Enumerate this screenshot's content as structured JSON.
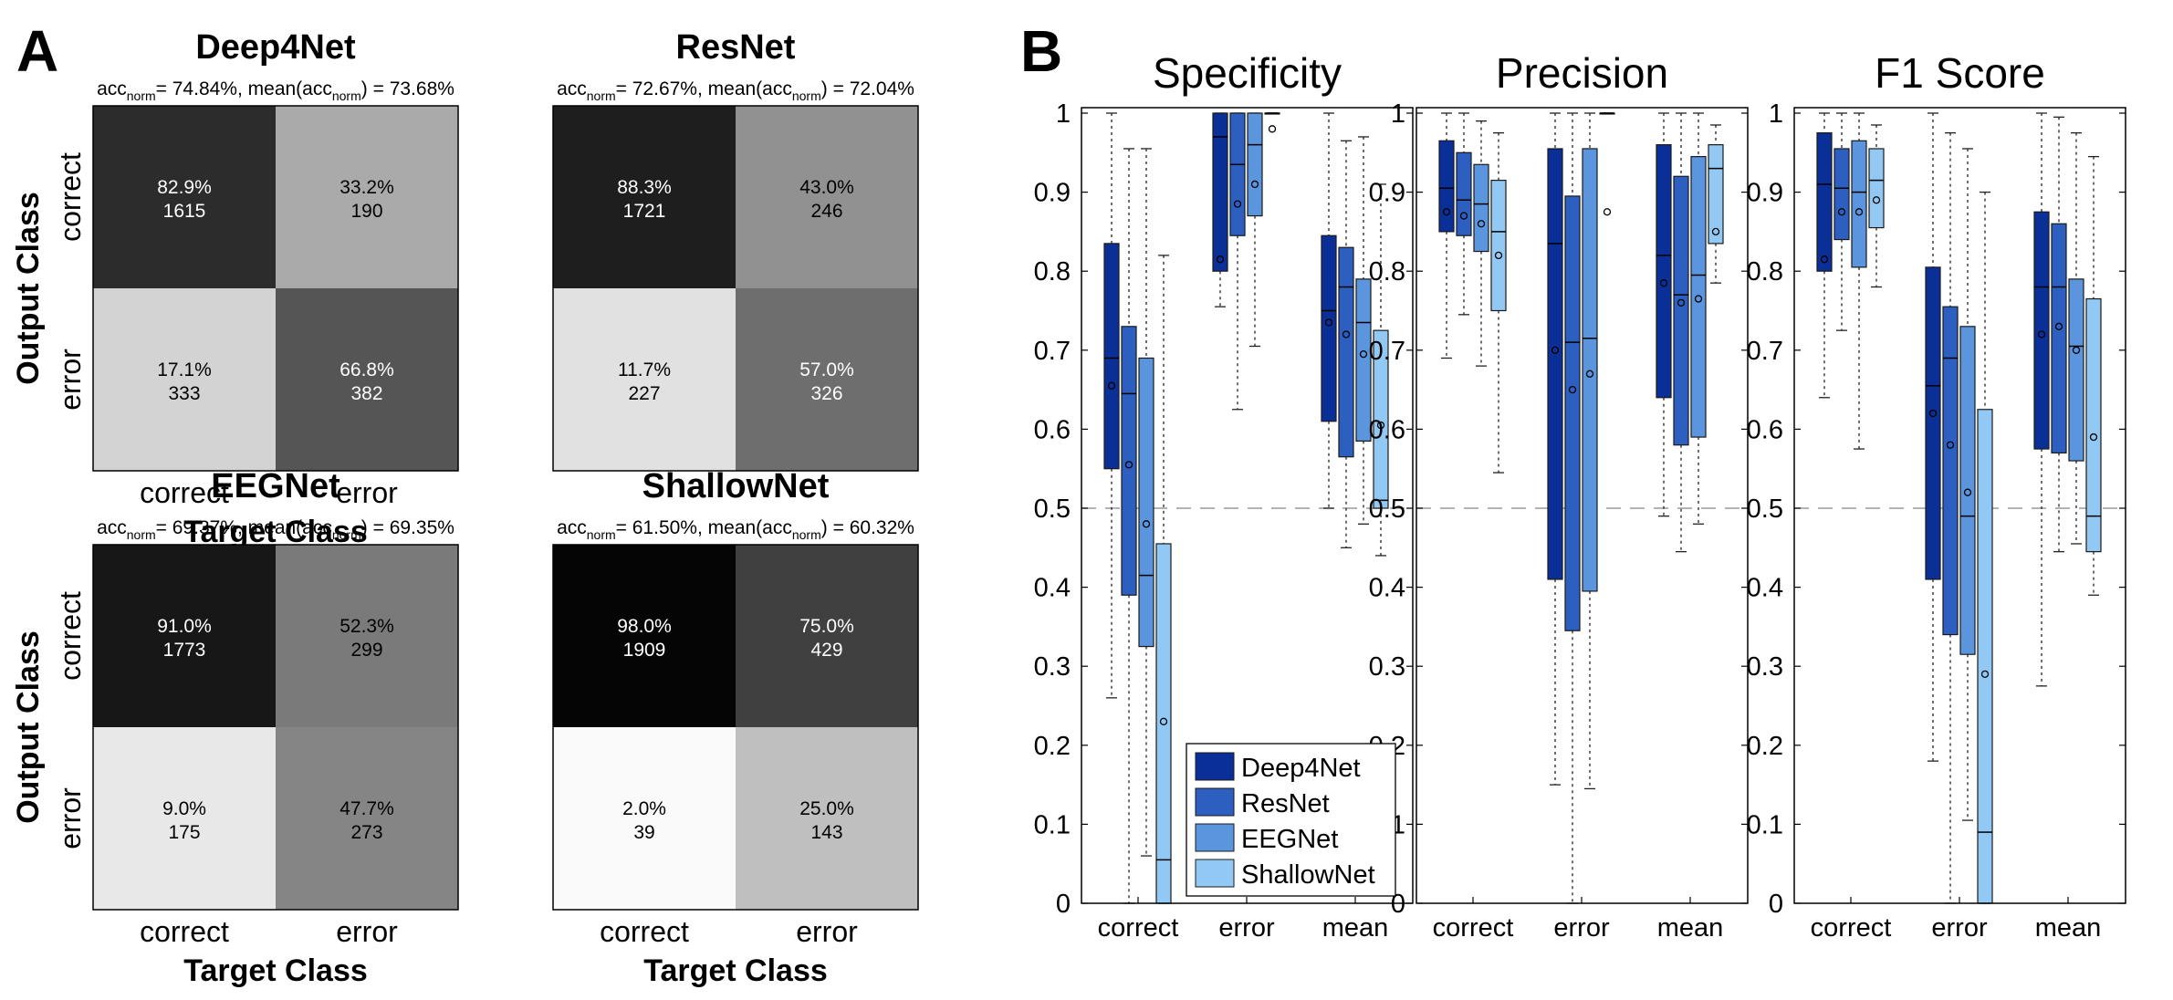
{
  "panel_labels": {
    "a": "A",
    "b": "B"
  },
  "legend_colors": [
    "#0a2f96",
    "#2c5fbf",
    "#5b95dd",
    "#92c9f4"
  ],
  "chart_data": [
    {
      "type": "heatmap",
      "title": "Deep4Net",
      "subtitle": {
        "pre": "acc",
        "sub1": "norm",
        "mid": "= 74.84%, mean(acc",
        "sub2": "norm",
        "post": ") = 73.68%"
      },
      "ylabel": "Output Class",
      "xlabel": "Target Class",
      "rows": [
        "correct",
        "error"
      ],
      "cols": [
        "correct",
        "error"
      ],
      "cells": [
        [
          {
            "pct": "82.9%",
            "count": "1615",
            "value": 0.829
          },
          {
            "pct": "33.2%",
            "count": "190",
            "value": 0.332
          }
        ],
        [
          {
            "pct": "17.1%",
            "count": "333",
            "value": 0.171
          },
          {
            "pct": "66.8%",
            "count": "382",
            "value": 0.668
          }
        ]
      ]
    },
    {
      "type": "heatmap",
      "title": "ResNet",
      "subtitle": {
        "pre": "acc",
        "sub1": "norm",
        "mid": "= 72.67%, mean(acc",
        "sub2": "norm",
        "post": ") = 72.04%"
      },
      "ylabel": "",
      "xlabel": "",
      "rows": [],
      "cols": [],
      "cells": [
        [
          {
            "pct": "88.3%",
            "count": "1721",
            "value": 0.883
          },
          {
            "pct": "43.0%",
            "count": "246",
            "value": 0.43
          }
        ],
        [
          {
            "pct": "11.7%",
            "count": "227",
            "value": 0.117
          },
          {
            "pct": "57.0%",
            "count": "326",
            "value": 0.57
          }
        ]
      ]
    },
    {
      "type": "heatmap",
      "title": "EEGNet",
      "subtitle": {
        "pre": "acc",
        "sub1": "norm",
        "mid": "= 69.37%, mean(acc",
        "sub2": "norm",
        "post": ") = 69.35%"
      },
      "ylabel": "Output Class",
      "xlabel": "Target Class",
      "rows": [
        "correct",
        "error"
      ],
      "cols": [
        "correct",
        "error"
      ],
      "cells": [
        [
          {
            "pct": "91.0%",
            "count": "1773",
            "value": 0.91
          },
          {
            "pct": "52.3%",
            "count": "299",
            "value": 0.523
          }
        ],
        [
          {
            "pct": "9.0%",
            "count": "175",
            "value": 0.09
          },
          {
            "pct": "47.7%",
            "count": "273",
            "value": 0.477
          }
        ]
      ]
    },
    {
      "type": "heatmap",
      "title": "ShallowNet",
      "subtitle": {
        "pre": "acc",
        "sub1": "norm",
        "mid": "= 61.50%, mean(acc",
        "sub2": "norm",
        "post": ") = 60.32%"
      },
      "ylabel": "",
      "xlabel": "Target Class",
      "rows": [],
      "cols": [
        "correct",
        "error"
      ],
      "cells": [
        [
          {
            "pct": "98.0%",
            "count": "1909",
            "value": 0.98
          },
          {
            "pct": "75.0%",
            "count": "429",
            "value": 0.75
          }
        ],
        [
          {
            "pct": "2.0%",
            "count": "39",
            "value": 0.02
          },
          {
            "pct": "25.0%",
            "count": "143",
            "value": 0.25
          }
        ]
      ]
    },
    {
      "type": "box",
      "title": "Specificity",
      "categories": [
        "correct",
        "error",
        "mean"
      ],
      "ylim": [
        0,
        1
      ],
      "yticks": [
        "0",
        "0.1",
        "0.2",
        "0.3",
        "0.4",
        "0.5",
        "0.6",
        "0.7",
        "0.8",
        "0.9",
        "1"
      ],
      "reference_line": 0.5,
      "legend": [
        "Deep4Net",
        "ResNet",
        "EEGNet",
        "ShallowNet"
      ],
      "groups": [
        {
          "category": "correct",
          "boxes": [
            {
              "series": "Deep4Net",
              "min": 0.26,
              "q1": 0.55,
              "median": 0.69,
              "q3": 0.835,
              "max": 1.0,
              "mean": 0.655
            },
            {
              "series": "ResNet",
              "min": 0.0,
              "q1": 0.39,
              "median": 0.645,
              "q3": 0.73,
              "max": 0.955,
              "mean": 0.555
            },
            {
              "series": "EEGNet",
              "min": 0.06,
              "q1": 0.325,
              "median": 0.415,
              "q3": 0.69,
              "max": 0.955,
              "mean": 0.48
            },
            {
              "series": "ShallowNet",
              "min": 0.0,
              "q1": 0.0,
              "median": 0.055,
              "q3": 0.455,
              "max": 0.82,
              "mean": 0.23
            }
          ]
        },
        {
          "category": "error",
          "boxes": [
            {
              "series": "Deep4Net",
              "min": 0.755,
              "q1": 0.8,
              "median": 0.97,
              "q3": 1.0,
              "max": 1.0,
              "mean": 0.815
            },
            {
              "series": "ResNet",
              "min": 0.625,
              "q1": 0.845,
              "median": 0.935,
              "q3": 1.0,
              "max": 1.0,
              "mean": 0.885
            },
            {
              "series": "EEGNet",
              "min": 0.705,
              "q1": 0.87,
              "median": 0.96,
              "q3": 1.0,
              "max": 1.0,
              "mean": 0.91
            },
            {
              "series": "ShallowNet",
              "min": 1.0,
              "q1": 1.0,
              "median": 1.0,
              "q3": 1.0,
              "max": 1.0,
              "mean": 0.98
            }
          ]
        },
        {
          "category": "mean",
          "boxes": [
            {
              "series": "Deep4Net",
              "min": 0.5,
              "q1": 0.61,
              "median": 0.75,
              "q3": 0.845,
              "max": 1.0,
              "mean": 0.735
            },
            {
              "series": "ResNet",
              "min": 0.45,
              "q1": 0.565,
              "median": 0.78,
              "q3": 0.83,
              "max": 0.965,
              "mean": 0.72
            },
            {
              "series": "EEGNet",
              "min": 0.48,
              "q1": 0.585,
              "median": 0.735,
              "q3": 0.79,
              "max": 0.97,
              "mean": 0.695
            },
            {
              "series": "ShallowNet",
              "min": 0.44,
              "q1": 0.5,
              "median": 0.51,
              "q3": 0.725,
              "max": 0.91,
              "mean": 0.605
            }
          ]
        }
      ]
    },
    {
      "type": "box",
      "title": "Precision",
      "categories": [
        "correct",
        "error",
        "mean"
      ],
      "ylim": [
        0,
        1
      ],
      "yticks": [
        "0",
        "0.1",
        "0.2",
        "0.3",
        "0.4",
        "0.5",
        "0.6",
        "0.7",
        "0.8",
        "0.9",
        "1"
      ],
      "reference_line": 0.5,
      "groups": [
        {
          "category": "correct",
          "boxes": [
            {
              "series": "Deep4Net",
              "min": 0.69,
              "q1": 0.85,
              "median": 0.905,
              "q3": 0.965,
              "max": 1.0,
              "mean": 0.875
            },
            {
              "series": "ResNet",
              "min": 0.745,
              "q1": 0.845,
              "median": 0.89,
              "q3": 0.95,
              "max": 1.0,
              "mean": 0.87
            },
            {
              "series": "EEGNet",
              "min": 0.68,
              "q1": 0.825,
              "median": 0.885,
              "q3": 0.935,
              "max": 0.99,
              "mean": 0.86
            },
            {
              "series": "ShallowNet",
              "min": 0.545,
              "q1": 0.75,
              "median": 0.85,
              "q3": 0.915,
              "max": 0.975,
              "mean": 0.82
            }
          ]
        },
        {
          "category": "error",
          "boxes": [
            {
              "series": "Deep4Net",
              "min": 0.15,
              "q1": 0.41,
              "median": 0.835,
              "q3": 0.955,
              "max": 1.0,
              "mean": 0.7
            },
            {
              "series": "ResNet",
              "min": 0.0,
              "q1": 0.345,
              "median": 0.71,
              "q3": 0.895,
              "max": 1.0,
              "mean": 0.65
            },
            {
              "series": "EEGNet",
              "min": 0.145,
              "q1": 0.395,
              "median": 0.715,
              "q3": 0.955,
              "max": 1.0,
              "mean": 0.67
            },
            {
              "series": "ShallowNet",
              "min": 1.0,
              "q1": 1.0,
              "median": 1.0,
              "q3": 1.0,
              "max": 1.0,
              "mean": 0.875
            }
          ]
        },
        {
          "category": "mean",
          "boxes": [
            {
              "series": "Deep4Net",
              "min": 0.49,
              "q1": 0.64,
              "median": 0.82,
              "q3": 0.96,
              "max": 1.0,
              "mean": 0.785
            },
            {
              "series": "ResNet",
              "min": 0.445,
              "q1": 0.58,
              "median": 0.77,
              "q3": 0.92,
              "max": 1.0,
              "mean": 0.76
            },
            {
              "series": "EEGNet",
              "min": 0.48,
              "q1": 0.59,
              "median": 0.795,
              "q3": 0.945,
              "max": 1.0,
              "mean": 0.765
            },
            {
              "series": "ShallowNet",
              "min": 0.785,
              "q1": 0.835,
              "median": 0.93,
              "q3": 0.96,
              "max": 0.985,
              "mean": 0.85
            }
          ]
        }
      ]
    },
    {
      "type": "box",
      "title": "F1 Score",
      "categories": [
        "correct",
        "error",
        "mean"
      ],
      "ylim": [
        0,
        1
      ],
      "yticks": [
        "0",
        "0.1",
        "0.2",
        "0.3",
        "0.4",
        "0.5",
        "0.6",
        "0.7",
        "0.8",
        "0.9",
        "1"
      ],
      "reference_line": 0.5,
      "groups": [
        {
          "category": "correct",
          "boxes": [
            {
              "series": "Deep4Net",
              "min": 0.64,
              "q1": 0.8,
              "median": 0.91,
              "q3": 0.975,
              "max": 1.0,
              "mean": 0.815
            },
            {
              "series": "ResNet",
              "min": 0.725,
              "q1": 0.84,
              "median": 0.905,
              "q3": 0.955,
              "max": 1.0,
              "mean": 0.875
            },
            {
              "series": "EEGNet",
              "min": 0.575,
              "q1": 0.805,
              "median": 0.9,
              "q3": 0.965,
              "max": 1.0,
              "mean": 0.875
            },
            {
              "series": "ShallowNet",
              "min": 0.78,
              "q1": 0.855,
              "median": 0.915,
              "q3": 0.955,
              "max": 0.985,
              "mean": 0.89
            }
          ]
        },
        {
          "category": "error",
          "boxes": [
            {
              "series": "Deep4Net",
              "min": 0.18,
              "q1": 0.41,
              "median": 0.655,
              "q3": 0.805,
              "max": 1.0,
              "mean": 0.62
            },
            {
              "series": "ResNet",
              "min": 0.0,
              "q1": 0.34,
              "median": 0.69,
              "q3": 0.755,
              "max": 0.975,
              "mean": 0.58
            },
            {
              "series": "EEGNet",
              "min": 0.105,
              "q1": 0.315,
              "median": 0.49,
              "q3": 0.73,
              "max": 0.955,
              "mean": 0.52
            },
            {
              "series": "ShallowNet",
              "min": 0.0,
              "q1": 0.0,
              "median": 0.09,
              "q3": 0.625,
              "max": 0.9,
              "mean": 0.29
            }
          ]
        },
        {
          "category": "mean",
          "boxes": [
            {
              "series": "Deep4Net",
              "min": 0.275,
              "q1": 0.575,
              "median": 0.78,
              "q3": 0.875,
              "max": 1.0,
              "mean": 0.72
            },
            {
              "series": "ResNet",
              "min": 0.445,
              "q1": 0.57,
              "median": 0.78,
              "q3": 0.86,
              "max": 0.995,
              "mean": 0.73
            },
            {
              "series": "EEGNet",
              "min": 0.455,
              "q1": 0.56,
              "median": 0.705,
              "q3": 0.79,
              "max": 0.975,
              "mean": 0.7
            },
            {
              "series": "ShallowNet",
              "min": 0.39,
              "q1": 0.445,
              "median": 0.49,
              "q3": 0.765,
              "max": 0.945,
              "mean": 0.59
            }
          ]
        }
      ]
    }
  ]
}
